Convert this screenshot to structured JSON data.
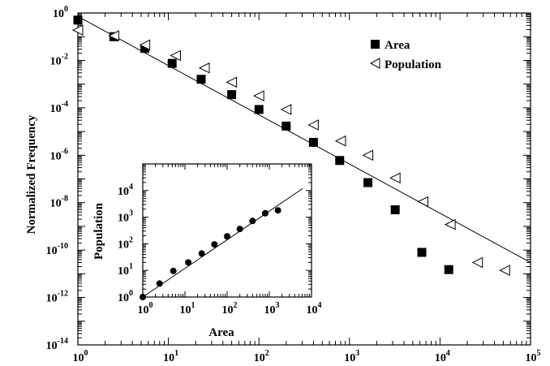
{
  "chart_data": [
    {
      "type": "scatter",
      "xscale": "log",
      "yscale": "log",
      "xlim": [
        1,
        100000
      ],
      "ylim": [
        1e-14,
        1
      ],
      "ylabel": "Normalized Frequency",
      "xlabel": "",
      "grid": false,
      "legend_position": "top-right",
      "x_ticks": [
        {
          "value": 1,
          "base": "10",
          "exp": "0"
        },
        {
          "value": 10,
          "base": "10",
          "exp": "1"
        },
        {
          "value": 100,
          "base": "10",
          "exp": "2"
        },
        {
          "value": 1000,
          "base": "10",
          "exp": "3"
        },
        {
          "value": 10000,
          "base": "10",
          "exp": "4"
        },
        {
          "value": 100000,
          "base": "10",
          "exp": "5"
        }
      ],
      "y_ticks": [
        {
          "value": 1,
          "base": "10",
          "exp": "0"
        },
        {
          "value": 0.01,
          "base": "10",
          "exp": "-2"
        },
        {
          "value": 0.0001,
          "base": "10",
          "exp": "-4"
        },
        {
          "value": 1e-06,
          "base": "10",
          "exp": "-6"
        },
        {
          "value": 1e-08,
          "base": "10",
          "exp": "-8"
        },
        {
          "value": 1e-10,
          "base": "10",
          "exp": "-10"
        },
        {
          "value": 1e-12,
          "base": "10",
          "exp": "-12"
        },
        {
          "value": 1e-14,
          "base": "10",
          "exp": "-14"
        }
      ],
      "series": [
        {
          "name": "Area",
          "marker": "filled-square",
          "x": [
            1,
            2.5,
            5.5,
            11,
            23,
            50,
            100,
            200,
            400,
            780,
            1600,
            3200,
            6300,
            12500
          ],
          "y": [
            0.5,
            0.1,
            0.032,
            0.0075,
            0.0016,
            0.00036,
            8.5e-05,
            1.7e-05,
            3.5e-06,
            6e-07,
            7e-08,
            5e-09,
            8e-11,
            1.5e-11
          ]
        },
        {
          "name": "Population",
          "marker": "open-left-triangle",
          "x": [
            1,
            2.5,
            5.5,
            12,
            25,
            50,
            100,
            200,
            400,
            800,
            1600,
            3200,
            6500,
            13000,
            26000,
            52000
          ],
          "y": [
            0.19,
            0.11,
            0.045,
            0.016,
            0.0048,
            0.0012,
            0.00032,
            8.5e-05,
            1.9e-05,
            4e-06,
            1e-06,
            1.1e-07,
            1.1e-08,
            1.2e-09,
            3e-11,
            1.4e-11
          ]
        }
      ],
      "fit_line": {
        "x": [
          1,
          100000
        ],
        "y": [
          0.72,
          3e-11
        ]
      }
    },
    {
      "type": "scatter",
      "role": "inset",
      "xscale": "log",
      "yscale": "log",
      "xlim": [
        1,
        10000
      ],
      "ylim": [
        1,
        100000
      ],
      "xlabel": "Area",
      "ylabel": "Population",
      "x_ticks": [
        {
          "value": 1,
          "base": "10",
          "exp": "0"
        },
        {
          "value": 10,
          "base": "10",
          "exp": "1"
        },
        {
          "value": 100,
          "base": "10",
          "exp": "2"
        },
        {
          "value": 1000,
          "base": "10",
          "exp": "3"
        },
        {
          "value": 10000,
          "base": "10",
          "exp": "4"
        }
      ],
      "y_ticks": [
        {
          "value": 1,
          "base": "10",
          "exp": "0"
        },
        {
          "value": 10,
          "base": "10",
          "exp": "1"
        },
        {
          "value": 100,
          "base": "10",
          "exp": "2"
        },
        {
          "value": 1000,
          "base": "10",
          "exp": "3"
        },
        {
          "value": 10000,
          "base": "10",
          "exp": "4"
        }
      ],
      "series": [
        {
          "marker": "filled-circle",
          "x": [
            1,
            2.5,
            5.3,
            12,
            25,
            50,
            100,
            200,
            400,
            800,
            1600
          ],
          "y": [
            1,
            3.2,
            9.5,
            20,
            43,
            95,
            190,
            360,
            720,
            1400,
            1800
          ]
        }
      ],
      "fit_line": {
        "x": [
          1,
          10000
        ],
        "y": [
          1,
          20000
        ]
      }
    }
  ]
}
